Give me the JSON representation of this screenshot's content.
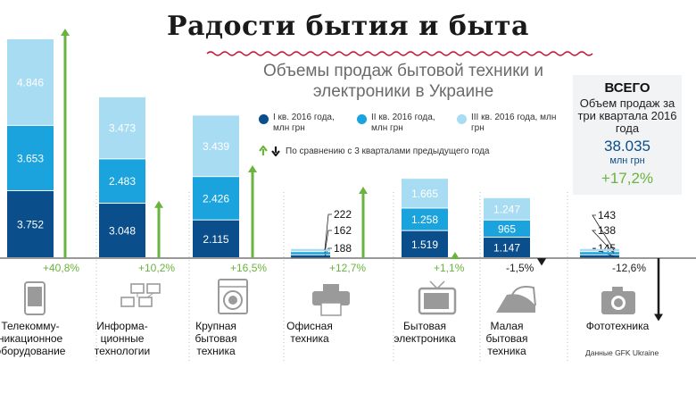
{
  "headline": "Радости бытия и быта",
  "chart_data": {
    "type": "bar",
    "title": "Объемы продаж бытовой техники и электроники в Украине",
    "categories": [
      "Телекоммуникационное оборудование",
      "Информационные технологии",
      "Крупная бытовая техника",
      "Офисная техника",
      "Бытовая электроника",
      "Малая бытовая техника",
      "Фототехника"
    ],
    "category_label_lines": [
      [
        "Телекомму-",
        "никационное",
        "оборудование"
      ],
      [
        "Информа-",
        "ционные",
        "технологии"
      ],
      [
        "Крупная",
        "бытовая",
        "техника"
      ],
      [
        "Офисная",
        "техника"
      ],
      [
        "Бытовая",
        "электроника"
      ],
      [
        "Малая",
        "бытовая",
        "техника"
      ],
      [
        "Фототехника"
      ]
    ],
    "series": [
      {
        "name": "I кв. 2016 года, млн грн",
        "values": [
          3752,
          3048,
          2115,
          188,
          1519,
          1147,
          145
        ],
        "labels": [
          "3.752",
          "3.048",
          "2.115",
          "188",
          "1.519",
          "1.147",
          "145"
        ],
        "color": "#0a4e8c"
      },
      {
        "name": "II кв. 2016 года, млн грн",
        "values": [
          3653,
          2483,
          2426,
          162,
          1258,
          965,
          138
        ],
        "labels": [
          "3.653",
          "2.483",
          "2.426",
          "162",
          "1.258",
          "965",
          "138"
        ],
        "color": "#1aa3dc"
      },
      {
        "name": "III кв. 2016 года, млн грн",
        "values": [
          4846,
          3473,
          3439,
          222,
          1665,
          1247,
          143
        ],
        "labels": [
          "4.846",
          "3.473",
          "3.439",
          "222",
          "1.665",
          "1.247",
          "143"
        ],
        "color": "#a8dcf3"
      }
    ],
    "change": {
      "note": "По сравнению с 3 кварталами предыдущего года",
      "values": [
        40.8,
        10.2,
        16.5,
        12.7,
        1.1,
        -1.5,
        -12.6
      ],
      "labels": [
        "+40,8%",
        "+10,2%",
        "+16,5%",
        "+12,7%",
        "+1,1%",
        "-1,5%",
        "-12,6%"
      ]
    },
    "colors": {
      "up": "#6ab33e",
      "down": "#1a1a1a",
      "axis": "#333333"
    }
  },
  "total": {
    "title": "ВСЕГО",
    "subtitle": "Объем продаж за три квартала 2016 года",
    "value": "38.035",
    "unit": "млн грн",
    "growth": "+17,2%"
  },
  "source": "Данные GFK Ukraine",
  "icons": [
    "mobile-phone-icon",
    "computer-network-icon",
    "washing-machine-icon",
    "printer-icon",
    "tv-icon",
    "iron-icon",
    "camera-icon"
  ]
}
